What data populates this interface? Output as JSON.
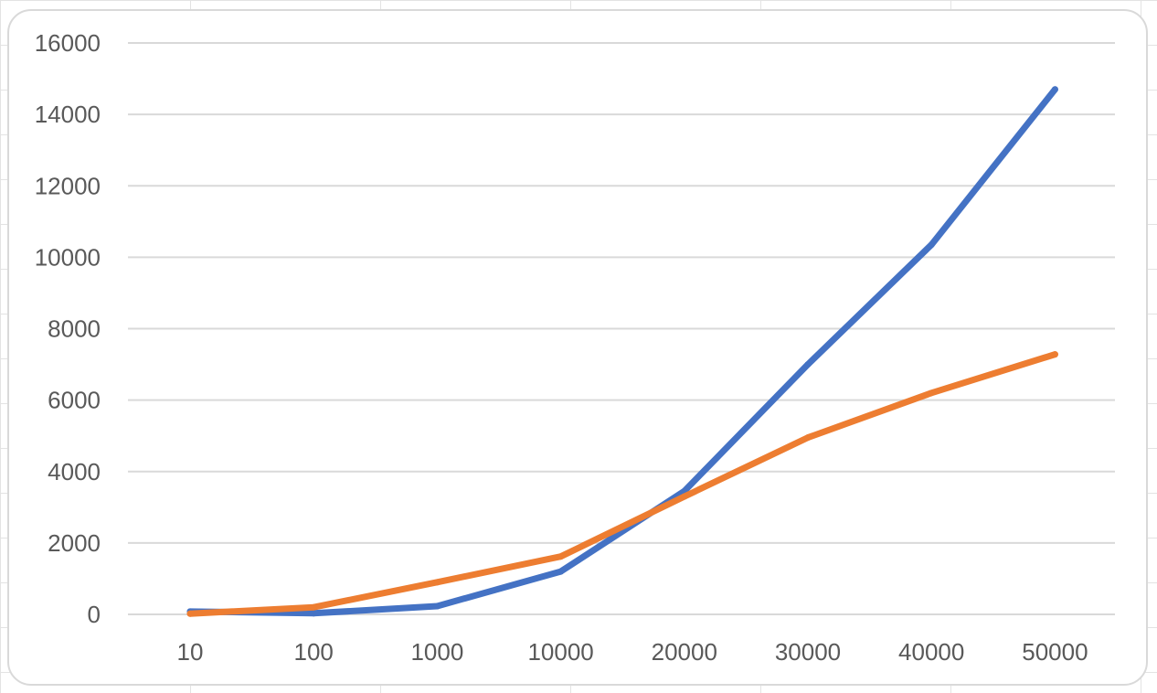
{
  "chart_data": {
    "type": "line",
    "title": "",
    "xlabel": "",
    "ylabel": "",
    "categories": [
      "10",
      "100",
      "1000",
      "10000",
      "20000",
      "30000",
      "40000",
      "50000"
    ],
    "ylim": [
      0,
      16000
    ],
    "yticks": [
      "0",
      "2000",
      "4000",
      "6000",
      "8000",
      "10000",
      "12000",
      "14000",
      "16000"
    ],
    "grid": true,
    "legend": "none",
    "series": [
      {
        "color": "#4472C4",
        "values": [
          80,
          30,
          230,
          1200,
          3450,
          7000,
          10350,
          14700
        ]
      },
      {
        "color": "#ED7D31",
        "values": [
          20,
          200,
          900,
          1620,
          3300,
          4950,
          6200,
          7280
        ]
      }
    ]
  }
}
